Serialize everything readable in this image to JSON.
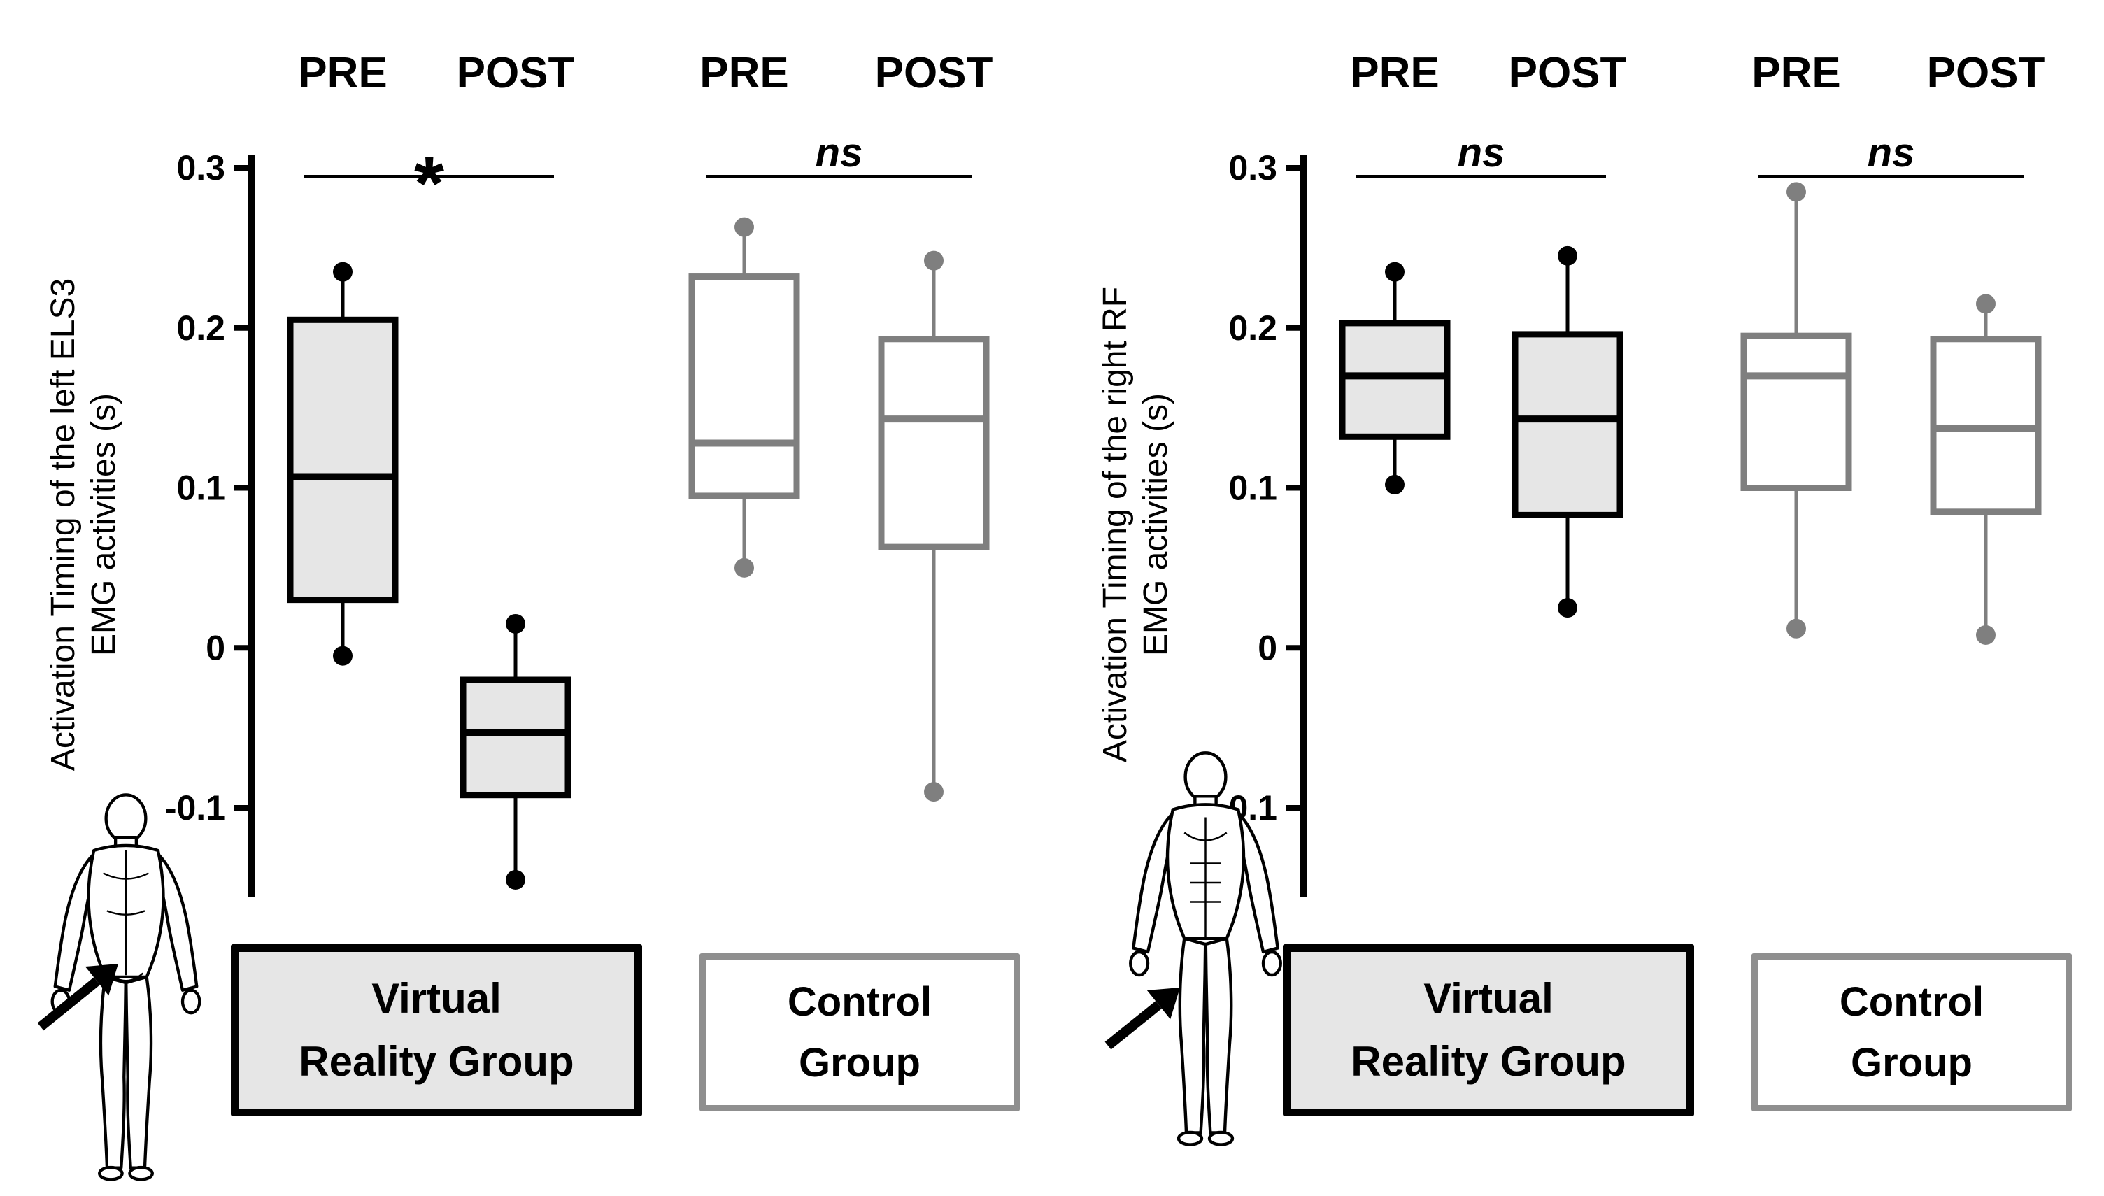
{
  "figure_title": "Activation timing box plots, PRE vs POST, Virtual Reality Group vs Control Group",
  "colors": {
    "vr_stroke": "#000000",
    "vr_fill": "#e6e6e6",
    "vr_dot": "#000000",
    "control_stroke": "#7f7f7f",
    "control_fill": "#ffffff",
    "control_dot": "#7f7f7f",
    "axis": "#000000"
  },
  "panels": [
    {
      "ylabel_lines": [
        "Activation Timing of the left ELS3",
        "EMG activities (s)"
      ],
      "figure_icon": "human-back-muscle-figure",
      "arrow_icon": "arrow-pointing-to-left-erector-spinae",
      "vr_label_lines": [
        "Virtual",
        "Reality Group"
      ],
      "control_label_lines": [
        "Control",
        "Group"
      ]
    },
    {
      "ylabel_lines": [
        "Activation Timing of the right RF",
        "EMG activities (s)"
      ],
      "figure_icon": "human-front-muscle-figure",
      "arrow_icon": "arrow-pointing-to-right-rectus-femoris",
      "vr_label_lines": [
        "Virtual",
        "Reality Group"
      ],
      "control_label_lines": [
        "Control",
        "Group"
      ]
    }
  ],
  "chart_data": [
    {
      "type": "box",
      "title": "",
      "xlabel": "",
      "ylabel": "Activation Timing of the left ELS3 EMG activities (s)",
      "ylim": [
        -0.155,
        0.3
      ],
      "yticks": [
        0.3,
        0.2,
        0.1,
        0,
        -0.1
      ],
      "grid": false,
      "groups": [
        {
          "name": "Virtual Reality Group",
          "style": "vr",
          "significance": "*",
          "boxes": [
            {
              "label": "PRE",
              "whisker_low": -0.005,
              "q1": 0.03,
              "median": 0.107,
              "q3": 0.205,
              "whisker_high": 0.235
            },
            {
              "label": "POST",
              "whisker_low": -0.145,
              "q1": -0.092,
              "median": -0.053,
              "q3": -0.02,
              "whisker_high": 0.015
            }
          ]
        },
        {
          "name": "Control Group",
          "style": "control",
          "significance": "ns",
          "boxes": [
            {
              "label": "PRE",
              "whisker_low": 0.05,
              "q1": 0.095,
              "median": 0.128,
              "q3": 0.232,
              "whisker_high": 0.263
            },
            {
              "label": "POST",
              "whisker_low": -0.09,
              "q1": 0.063,
              "median": 0.143,
              "q3": 0.193,
              "whisker_high": 0.242
            }
          ]
        }
      ]
    },
    {
      "type": "box",
      "title": "",
      "xlabel": "",
      "ylabel": "Activation Timing of the right RF EMG activities (s)",
      "ylim": [
        -0.155,
        0.3
      ],
      "yticks": [
        0.3,
        0.2,
        0.1,
        0,
        -0.1
      ],
      "grid": false,
      "groups": [
        {
          "name": "Virtual Reality Group",
          "style": "vr",
          "significance": "ns",
          "boxes": [
            {
              "label": "PRE",
              "whisker_low": 0.102,
              "q1": 0.132,
              "median": 0.17,
              "q3": 0.203,
              "whisker_high": 0.235
            },
            {
              "label": "POST",
              "whisker_low": 0.025,
              "q1": 0.083,
              "median": 0.143,
              "q3": 0.196,
              "whisker_high": 0.245
            }
          ]
        },
        {
          "name": "Control Group",
          "style": "control",
          "significance": "ns",
          "boxes": [
            {
              "label": "PRE",
              "whisker_low": 0.012,
              "q1": 0.1,
              "median": 0.17,
              "q3": 0.195,
              "whisker_high": 0.285
            },
            {
              "label": "POST",
              "whisker_low": 0.008,
              "q1": 0.085,
              "median": 0.137,
              "q3": 0.193,
              "whisker_high": 0.215
            }
          ]
        }
      ]
    }
  ]
}
